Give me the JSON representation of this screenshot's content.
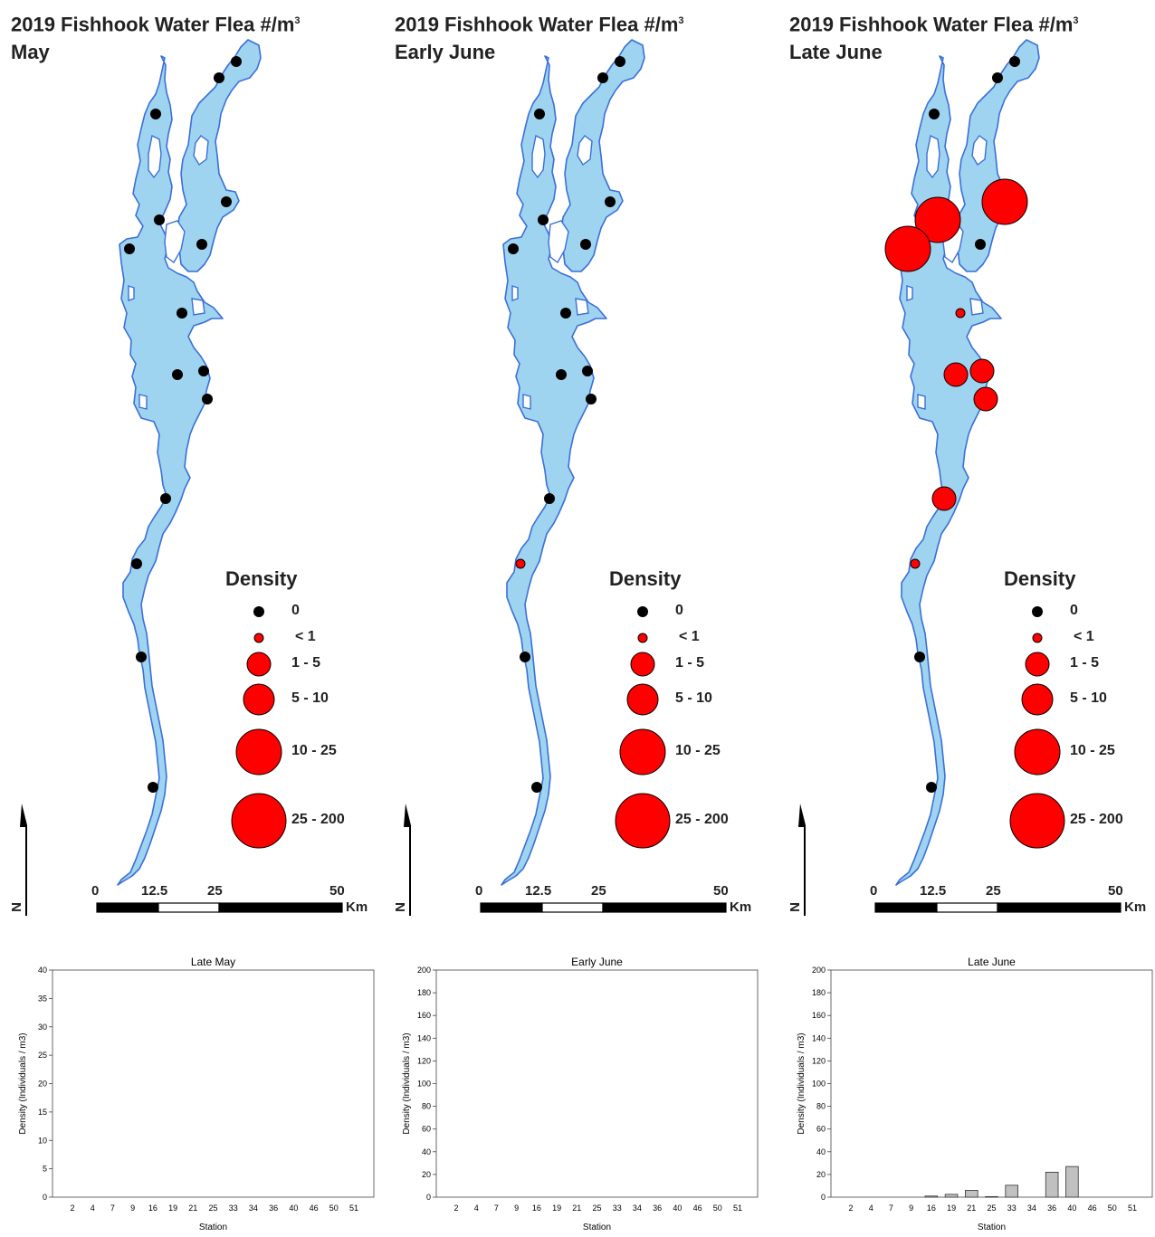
{
  "maps": [
    {
      "title_line1": "2019 Fishhook Water Flea #/m",
      "title_sup": "3",
      "title_line2": "May",
      "densities": [
        "0",
        "0",
        "0",
        "0",
        "0",
        "0",
        "0",
        "0",
        "0",
        "0",
        "0",
        "0",
        "0",
        "0",
        "0",
        "0"
      ]
    },
    {
      "title_line1": "2019 Fishhook Water Flea #/m",
      "title_sup": "3",
      "title_line2": "Early June",
      "densities": [
        "0",
        "0",
        "0",
        "0",
        "0",
        "0",
        "0",
        "0",
        "0",
        "0",
        "0",
        "0",
        "<1",
        "0",
        "0",
        "0"
      ]
    },
    {
      "title_line1": "2019 Fishhook Water Flea #/m",
      "title_sup": "3",
      "title_line2": "Late June",
      "densities": [
        "0",
        "0",
        "0",
        "10-25",
        "10-25",
        "10-25",
        "0",
        "<1",
        "1-5",
        "1-5",
        "1-5",
        "1-5",
        "<1",
        "0",
        "0",
        "0"
      ]
    }
  ],
  "legend": {
    "title": "Density",
    "classes": [
      "0",
      "< 1",
      "1 - 5",
      "5 - 10",
      "10 - 25",
      "25 - 200"
    ]
  },
  "scale_bar": {
    "labels": [
      "0",
      "12.5",
      "25",
      "50"
    ],
    "unit": "Km",
    "north": "N"
  },
  "colors": {
    "water": "#9fd4f0",
    "shore": "#3a6fd8",
    "presence": "#ff0000",
    "absence": "#000000",
    "bar": "#c0c0c0"
  },
  "chart_data": [
    {
      "type": "bar",
      "title": "Late May",
      "xlabel": "Station",
      "ylabel": "Density (Individuals / m3)",
      "ylim": [
        0,
        40
      ],
      "yticks": [
        0,
        5,
        10,
        15,
        20,
        25,
        30,
        35,
        40
      ],
      "categories": [
        "2",
        "4",
        "7",
        "9",
        "16",
        "19",
        "21",
        "25",
        "33",
        "34",
        "36",
        "40",
        "46",
        "50",
        "51"
      ],
      "values": [
        0,
        0,
        0,
        0,
        0,
        0,
        0,
        0,
        0,
        0,
        0,
        0,
        0,
        0,
        0
      ]
    },
    {
      "type": "bar",
      "title": "Early June",
      "xlabel": "Station",
      "ylabel": "Density (Individuals / m3)",
      "ylim": [
        0,
        200
      ],
      "yticks": [
        0,
        20,
        40,
        60,
        80,
        100,
        120,
        140,
        160,
        180,
        200
      ],
      "categories": [
        "2",
        "4",
        "7",
        "9",
        "16",
        "19",
        "21",
        "25",
        "33",
        "34",
        "36",
        "40",
        "46",
        "50",
        "51"
      ],
      "values": [
        0,
        0,
        0,
        0,
        0,
        0,
        0,
        0,
        0,
        0,
        0,
        0,
        0,
        0,
        0
      ]
    },
    {
      "type": "bar",
      "title": "Late June",
      "xlabel": "Station",
      "ylabel": "Density (Individuals / m3)",
      "ylim": [
        0,
        200
      ],
      "yticks": [
        0,
        20,
        40,
        60,
        80,
        100,
        120,
        140,
        160,
        180,
        200
      ],
      "categories": [
        "2",
        "4",
        "7",
        "9",
        "16",
        "19",
        "21",
        "25",
        "33",
        "34",
        "36",
        "40",
        "46",
        "50",
        "51"
      ],
      "values": [
        0,
        0,
        0,
        0,
        1,
        2.5,
        6,
        0.5,
        10.5,
        0,
        22,
        27,
        0,
        0,
        0
      ]
    }
  ]
}
